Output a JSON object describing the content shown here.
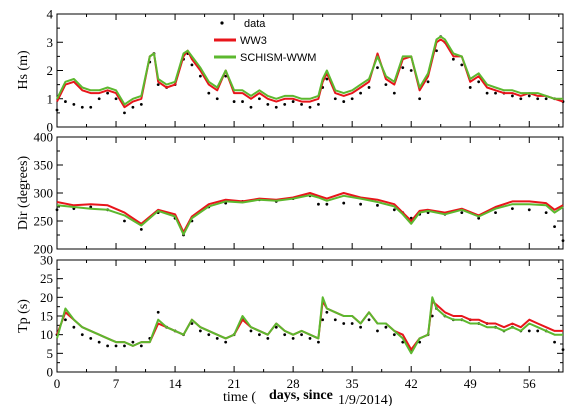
{
  "chart_data": [
    {
      "type": "line",
      "panel": "top",
      "ylabel": "Hs (m)",
      "ylim": [
        0,
        4
      ],
      "yticks": [
        0,
        1,
        2,
        3,
        4
      ],
      "xlim": [
        0,
        60
      ],
      "grid": false,
      "legend": {
        "placement": "top-center",
        "entries": [
          "data",
          "WW3",
          "SCHISM-WWM"
        ]
      },
      "x": [
        0,
        1,
        2,
        3,
        4,
        5,
        6,
        7,
        8,
        9,
        10,
        11,
        11.5,
        12,
        13,
        14,
        15,
        15.5,
        16,
        17,
        18,
        19,
        20,
        21,
        22,
        23,
        24,
        25,
        26,
        27,
        28,
        29,
        30,
        31,
        31.5,
        32,
        33,
        34,
        35,
        36,
        37,
        38,
        39,
        40,
        41,
        42,
        43,
        44,
        45,
        45.5,
        46,
        47,
        48,
        49,
        50,
        51,
        52,
        53,
        54,
        55,
        56,
        57,
        58,
        59,
        60
      ],
      "series": [
        {
          "name": "data",
          "style": "scatter",
          "values": [
            0.6,
            0.9,
            0.8,
            0.7,
            0.7,
            1.0,
            1.2,
            1.0,
            0.5,
            0.7,
            0.8,
            2.3,
            2.6,
            1.5,
            1.4,
            1.5,
            2.4,
            2.6,
            2.2,
            1.8,
            1.2,
            1.0,
            1.8,
            0.9,
            0.9,
            0.7,
            1.0,
            0.8,
            0.7,
            0.8,
            0.9,
            0.8,
            0.7,
            0.8,
            1.4,
            1.7,
            1.0,
            0.9,
            1.0,
            1.2,
            1.4,
            2.1,
            1.5,
            1.2,
            2.1,
            2.0,
            1.0,
            1.6,
            2.7,
            3.2,
            3.0,
            2.4,
            2.2,
            1.4,
            1.6,
            1.2,
            1.2,
            1.2,
            1.1,
            1.0,
            1.1,
            1.0,
            1.0,
            1.0,
            0.9
          ]
        },
        {
          "name": "WW3",
          "style": "line",
          "color": "#e8151b",
          "values": [
            0.9,
            1.5,
            1.6,
            1.3,
            1.2,
            1.2,
            1.3,
            1.2,
            0.7,
            0.9,
            1.0,
            2.5,
            2.6,
            1.6,
            1.4,
            1.5,
            2.5,
            2.7,
            2.4,
            2.0,
            1.5,
            1.3,
            2.0,
            1.2,
            1.2,
            1.0,
            1.2,
            1.0,
            0.9,
            1.0,
            1.0,
            0.9,
            0.9,
            1.0,
            1.6,
            1.9,
            1.2,
            1.1,
            1.2,
            1.4,
            1.6,
            2.6,
            1.7,
            1.5,
            2.4,
            2.5,
            1.3,
            1.8,
            3.0,
            3.1,
            3.0,
            2.5,
            2.5,
            1.6,
            1.8,
            1.4,
            1.3,
            1.2,
            1.2,
            1.1,
            1.2,
            1.1,
            1.1,
            1.0,
            0.9
          ]
        },
        {
          "name": "SCHISM-WWM",
          "style": "line",
          "color": "#5cb82f",
          "values": [
            1.0,
            1.6,
            1.7,
            1.4,
            1.3,
            1.3,
            1.4,
            1.3,
            0.8,
            1.0,
            1.1,
            2.5,
            2.6,
            1.7,
            1.5,
            1.6,
            2.6,
            2.7,
            2.5,
            2.1,
            1.6,
            1.4,
            2.0,
            1.3,
            1.3,
            1.1,
            1.3,
            1.1,
            1.0,
            1.1,
            1.1,
            1.0,
            1.0,
            1.1,
            1.7,
            2.0,
            1.3,
            1.2,
            1.3,
            1.5,
            1.7,
            2.5,
            1.8,
            1.6,
            2.5,
            2.5,
            1.4,
            1.9,
            3.1,
            3.2,
            3.1,
            2.6,
            2.5,
            1.7,
            1.9,
            1.5,
            1.4,
            1.3,
            1.3,
            1.2,
            1.2,
            1.2,
            1.1,
            1.0,
            1.0
          ]
        }
      ]
    },
    {
      "type": "line",
      "panel": "middle",
      "ylabel": "Dir (degrees)",
      "ylim": [
        200,
        400
      ],
      "yticks": [
        200,
        250,
        300,
        350,
        400
      ],
      "xlim": [
        0,
        60
      ],
      "grid": false,
      "x": [
        0,
        2,
        4,
        6,
        8,
        10,
        12,
        14,
        15,
        16,
        18,
        20,
        22,
        24,
        26,
        28,
        30,
        31,
        32,
        34,
        36,
        38,
        40,
        41,
        42,
        43,
        44,
        46,
        48,
        50,
        52,
        54,
        56,
        58,
        59,
        60
      ],
      "series": [
        {
          "name": "data",
          "style": "scatter",
          "values": [
            270,
            272,
            275,
            270,
            250,
            235,
            265,
            255,
            225,
            250,
            275,
            282,
            285,
            288,
            285,
            290,
            295,
            280,
            280,
            282,
            280,
            278,
            270,
            265,
            255,
            262,
            265,
            262,
            265,
            255,
            265,
            272,
            270,
            265,
            240,
            215
          ]
        },
        {
          "name": "WW3",
          "style": "line",
          "color": "#e8151b",
          "values": [
            284,
            278,
            280,
            278,
            265,
            245,
            270,
            262,
            230,
            258,
            280,
            288,
            285,
            290,
            288,
            292,
            300,
            295,
            290,
            300,
            292,
            288,
            280,
            265,
            250,
            268,
            270,
            265,
            272,
            260,
            275,
            285,
            285,
            282,
            270,
            278
          ]
        },
        {
          "name": "SCHISM-WWM",
          "style": "line",
          "color": "#5cb82f",
          "values": [
            278,
            275,
            272,
            270,
            260,
            242,
            268,
            258,
            226,
            255,
            276,
            285,
            283,
            288,
            286,
            290,
            296,
            292,
            286,
            295,
            290,
            284,
            276,
            262,
            245,
            265,
            268,
            262,
            270,
            258,
            272,
            280,
            280,
            278,
            265,
            275
          ]
        }
      ]
    },
    {
      "type": "line",
      "panel": "bottom",
      "ylabel": "Tp (s)",
      "ylim": [
        0,
        30
      ],
      "yticks": [
        0,
        5,
        10,
        15,
        20,
        25,
        30
      ],
      "xlim": [
        0,
        60
      ],
      "xticks": [
        0,
        7,
        14,
        21,
        28,
        35,
        42,
        49,
        56
      ],
      "xlabel_parts": [
        "time (",
        "days, since",
        "1/9/2014)"
      ],
      "grid": false,
      "x": [
        0,
        1,
        2,
        3,
        4,
        5,
        6,
        7,
        8,
        9,
        10,
        11,
        12,
        13,
        14,
        15,
        16,
        17,
        18,
        19,
        20,
        21,
        22,
        23,
        24,
        25,
        26,
        27,
        28,
        29,
        30,
        31,
        31.5,
        32,
        33,
        34,
        35,
        36,
        37,
        38,
        39,
        40,
        41,
        42,
        43,
        44,
        44.5,
        45,
        46,
        47,
        48,
        49,
        50,
        51,
        52,
        53,
        54,
        55,
        56,
        57,
        58,
        59,
        60
      ],
      "series": [
        {
          "name": "data",
          "style": "scatter",
          "values": [
            10,
            14,
            12,
            10,
            9,
            8,
            7,
            7,
            7,
            8,
            7,
            9,
            16,
            12,
            11,
            10,
            13,
            11,
            10,
            9,
            8,
            10,
            14,
            11,
            10,
            9,
            12,
            10,
            9,
            10,
            9,
            8,
            14,
            16,
            14,
            13,
            13,
            12,
            14,
            11,
            12,
            10,
            8,
            6,
            8,
            10,
            15,
            17,
            15,
            14,
            14,
            14,
            13,
            13,
            12,
            11,
            12,
            11,
            11,
            11,
            11,
            8,
            6
          ]
        },
        {
          "name": "WW3",
          "style": "line",
          "color": "#e8151b",
          "values": [
            10,
            16,
            14,
            12,
            11,
            10,
            9,
            8,
            8,
            7,
            8,
            8,
            13,
            12,
            11,
            10,
            14,
            12,
            11,
            10,
            9,
            10,
            14,
            12,
            11,
            10,
            13,
            11,
            10,
            11,
            10,
            9,
            19,
            17,
            16,
            15,
            15,
            13,
            16,
            13,
            13,
            11,
            10,
            6,
            9,
            10,
            19,
            18,
            16,
            15,
            15,
            14,
            14,
            13,
            13,
            12,
            13,
            12,
            14,
            13,
            12,
            11,
            11
          ]
        },
        {
          "name": "SCHISM-WWM",
          "style": "line",
          "color": "#5cb82f",
          "values": [
            9,
            17,
            14,
            12,
            11,
            10,
            9,
            8,
            8,
            7,
            8,
            8,
            14,
            12,
            11,
            10,
            14,
            12,
            11,
            10,
            9,
            10,
            15,
            12,
            11,
            10,
            13,
            11,
            10,
            11,
            10,
            9,
            20,
            17,
            16,
            15,
            15,
            13,
            16,
            13,
            13,
            11,
            9,
            5,
            9,
            10,
            20,
            17,
            15,
            14,
            14,
            13,
            13,
            12,
            12,
            11,
            12,
            11,
            13,
            12,
            11,
            10,
            10
          ]
        }
      ]
    }
  ]
}
